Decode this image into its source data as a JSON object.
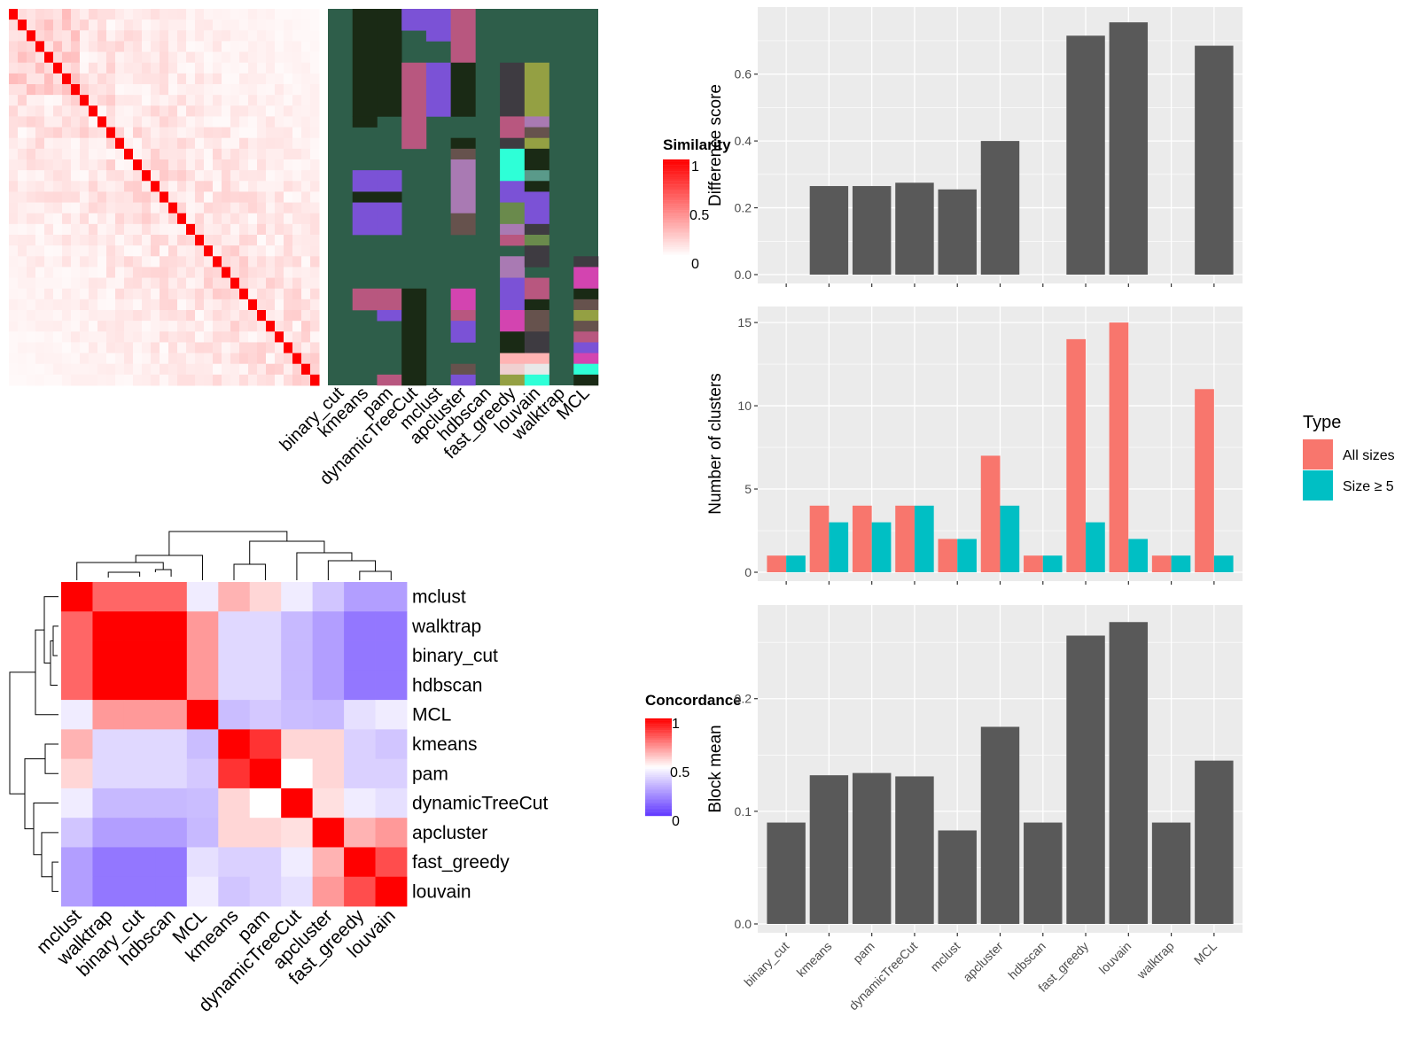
{
  "colors": {
    "heat_red": "#ff0000",
    "heat_white": "#ffffff",
    "heat_blue": "#0000ff",
    "cluster_bg": "#2e5e4a",
    "bar_gray": "#595959",
    "panel_bg": "#ebebeb",
    "all_sizes": "#f8766d",
    "size_ge5": "#00bfc4"
  },
  "chart_data": [
    {
      "id": "similarity_heatmap",
      "type": "heatmap",
      "legend_title": "Similarity",
      "legend_ticks": [
        "1",
        "0.5",
        "0"
      ],
      "n": 35,
      "range": [
        0,
        1
      ]
    },
    {
      "id": "cluster_assignments",
      "type": "heatmap",
      "methods": [
        "binary_cut",
        "kmeans",
        "pam",
        "dynamicTreeCut",
        "mclust",
        "apcluster",
        "hdbscan",
        "fast_greedy",
        "louvain",
        "walktrap",
        "MCL"
      ]
    },
    {
      "id": "concordance_heatmap",
      "type": "heatmap",
      "legend_title": "Concordance",
      "legend_ticks": [
        "1",
        "0.5",
        "0"
      ],
      "rows": [
        "mclust",
        "walktrap",
        "binary_cut",
        "hdbscan",
        "MCL",
        "kmeans",
        "pam",
        "dynamicTreeCut",
        "apcluster",
        "fast_greedy",
        "louvain"
      ],
      "cols": [
        "mclust",
        "walktrap",
        "binary_cut",
        "hdbscan",
        "MCL",
        "kmeans",
        "pam",
        "dynamicTreeCut",
        "apcluster",
        "fast_greedy",
        "louvain"
      ],
      "matrix": [
        [
          1.0,
          0.8,
          0.8,
          0.8,
          0.45,
          0.65,
          0.58,
          0.45,
          0.35,
          0.25,
          0.25
        ],
        [
          0.8,
          1.0,
          1.0,
          1.0,
          0.7,
          0.4,
          0.4,
          0.32,
          0.25,
          0.15,
          0.15
        ],
        [
          0.8,
          1.0,
          1.0,
          1.0,
          0.7,
          0.4,
          0.4,
          0.32,
          0.25,
          0.15,
          0.15
        ],
        [
          0.8,
          1.0,
          1.0,
          1.0,
          0.7,
          0.4,
          0.4,
          0.32,
          0.25,
          0.15,
          0.15
        ],
        [
          0.45,
          0.7,
          0.7,
          0.7,
          1.0,
          0.33,
          0.36,
          0.33,
          0.32,
          0.42,
          0.45
        ],
        [
          0.65,
          0.4,
          0.4,
          0.4,
          0.33,
          1.0,
          0.9,
          0.58,
          0.58,
          0.38,
          0.35
        ],
        [
          0.58,
          0.4,
          0.4,
          0.4,
          0.36,
          0.9,
          1.0,
          0.5,
          0.58,
          0.38,
          0.38
        ],
        [
          0.45,
          0.32,
          0.32,
          0.32,
          0.33,
          0.58,
          0.5,
          1.0,
          0.56,
          0.45,
          0.42
        ],
        [
          0.35,
          0.25,
          0.25,
          0.25,
          0.32,
          0.58,
          0.58,
          0.56,
          1.0,
          0.65,
          0.7
        ],
        [
          0.25,
          0.15,
          0.15,
          0.15,
          0.42,
          0.38,
          0.38,
          0.45,
          0.65,
          1.0,
          0.85
        ],
        [
          0.25,
          0.15,
          0.15,
          0.15,
          0.45,
          0.35,
          0.38,
          0.42,
          0.7,
          0.85,
          1.0
        ]
      ]
    },
    {
      "id": "difference_score",
      "type": "bar",
      "categories": [
        "binary_cut",
        "kmeans",
        "pam",
        "dynamicTreeCut",
        "mclust",
        "apcluster",
        "hdbscan",
        "fast_greedy",
        "louvain",
        "walktrap",
        "MCL"
      ],
      "values": [
        0,
        0.265,
        0.265,
        0.275,
        0.255,
        0.4,
        0,
        0.715,
        0.755,
        0,
        0.685
      ],
      "ylabel": "Difference score",
      "ylim": [
        0,
        0.79
      ],
      "yticks": [
        "0.0",
        "0.2",
        "0.4",
        "0.6"
      ]
    },
    {
      "id": "number_of_clusters",
      "type": "bar",
      "categories": [
        "binary_cut",
        "kmeans",
        "pam",
        "dynamicTreeCut",
        "mclust",
        "apcluster",
        "hdbscan",
        "fast_greedy",
        "louvain",
        "walktrap",
        "MCL"
      ],
      "series": [
        {
          "name": "All sizes",
          "values": [
            1,
            4,
            4,
            4,
            2,
            7,
            1,
            14,
            15,
            1,
            11
          ]
        },
        {
          "name": "Size ≥ 5",
          "values": [
            1,
            3,
            3,
            4,
            2,
            4,
            1,
            3,
            2,
            1,
            1
          ]
        }
      ],
      "ylabel": "Number of clusters",
      "ylim": [
        0,
        15.75
      ],
      "yticks": [
        "0",
        "5",
        "10",
        "15"
      ],
      "legend_title": "Type",
      "legend_position": "right"
    },
    {
      "id": "block_mean",
      "type": "bar",
      "categories": [
        "binary_cut",
        "kmeans",
        "pam",
        "dynamicTreeCut",
        "mclust",
        "apcluster",
        "hdbscan",
        "fast_greedy",
        "louvain",
        "walktrap",
        "MCL"
      ],
      "values": [
        0.09,
        0.132,
        0.134,
        0.131,
        0.083,
        0.175,
        0.09,
        0.256,
        0.268,
        0.09,
        0.145
      ],
      "ylabel": "Block mean",
      "ylim": [
        0,
        0.28
      ],
      "yticks": [
        "0.0",
        "0.1",
        "0.2"
      ]
    }
  ]
}
